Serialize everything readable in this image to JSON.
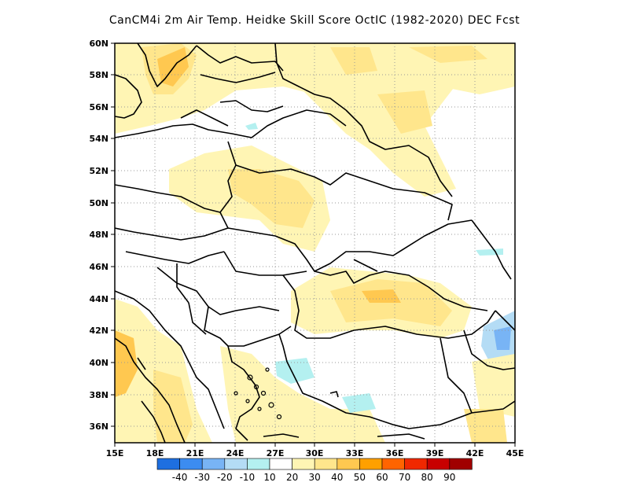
{
  "title": "CanCM4i  2m Air Temp. Heidke Skill Score OctIC (1982-2020) DEC Fcst",
  "map": {
    "lon_labels": [
      "15E",
      "18E",
      "21E",
      "24E",
      "27E",
      "30E",
      "33E",
      "36E",
      "39E",
      "42E",
      "45E"
    ],
    "lat_labels": [
      "60N",
      "58N",
      "56N",
      "54N",
      "52N",
      "50N",
      "48N",
      "46N",
      "44N",
      "42N",
      "40N",
      "38N",
      "36N"
    ],
    "lon_range": [
      15,
      45
    ],
    "lat_range": [
      35,
      60
    ],
    "grid": "dotted"
  },
  "colorbar": {
    "labels": [
      "-40",
      "-30",
      "-20",
      "-10",
      "10",
      "20",
      "30",
      "40",
      "50",
      "60",
      "70",
      "80",
      "90"
    ],
    "colors": [
      "#1e6fe0",
      "#3c8cf0",
      "#78b4f5",
      "#b4dcf5",
      "#b4f0f0",
      "#ffffff",
      "#fff5b4",
      "#ffe68c",
      "#ffc850",
      "#ffa000",
      "#ff6400",
      "#f02800",
      "#c80000",
      "#a00000"
    ]
  }
}
